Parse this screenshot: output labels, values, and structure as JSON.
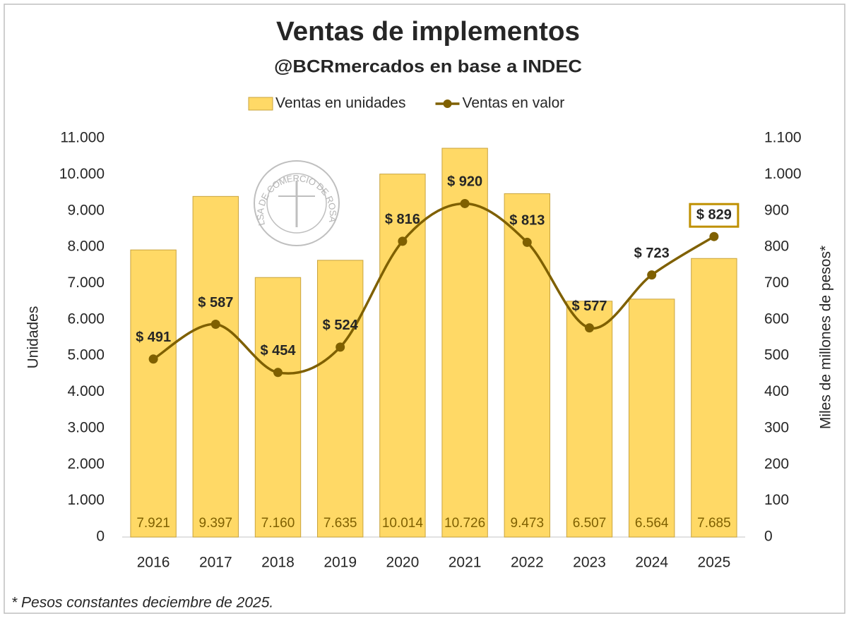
{
  "chart_data": {
    "type": "bar",
    "title": "Ventas de implementos",
    "subtitle": "@BCRmercados en base a INDEC",
    "ylabel": "Unidades",
    "y2label": "Miles de millones de pesos*",
    "footnote": "* Pesos constantes deciembre de 2025.",
    "watermark": "BOLSA DE COMERCIO DE ROSARIO",
    "legend": "top",
    "categories": [
      "2016",
      "2017",
      "2018",
      "2019",
      "2020",
      "2021",
      "2022",
      "2023",
      "2024",
      "2025"
    ],
    "series": [
      {
        "name": "Ventas en unidades",
        "type": "bar",
        "color": "#FFD966",
        "values": [
          7921,
          9397,
          7160,
          7635,
          10014,
          10726,
          9473,
          6507,
          6564,
          7685
        ],
        "value_labels": [
          "7.921",
          "9.397",
          "7.160",
          "7.635",
          "10.014",
          "10.726",
          "9.473",
          "6.507",
          "6.564",
          "7.685"
        ]
      },
      {
        "name": "Ventas en valor",
        "type": "line",
        "axis": "y2",
        "color": "#7F6000",
        "values": [
          491,
          587,
          454,
          524,
          816,
          920,
          813,
          577,
          723,
          829
        ],
        "value_labels": [
          "$ 491",
          "$ 587",
          "$ 454",
          "$ 524",
          "$ 816",
          "$ 920",
          "$ 813",
          "$ 577",
          "$ 723",
          "$ 829"
        ]
      }
    ],
    "ylim": [
      0,
      11000
    ],
    "yticks": [
      0,
      {
        "value": 1000,
        "label": "1.000"
      },
      {
        "value": 2000,
        "label": "2.000"
      },
      {
        "value": 3000,
        "label": "3.000"
      },
      {
        "value": 4000,
        "label": "4.000"
      },
      {
        "value": 5000,
        "label": "5.000"
      },
      {
        "value": 6000,
        "label": "6.000"
      },
      {
        "value": 7000,
        "label": "7.000"
      },
      {
        "value": 8000,
        "label": "8.000"
      },
      {
        "value": 9000,
        "label": "9.000"
      },
      {
        "value": 10000,
        "label": "10.000"
      },
      {
        "value": 11000,
        "label": "11.000"
      }
    ],
    "y2lim": [
      0,
      1100
    ],
    "y2ticks": [
      0,
      100,
      200,
      300,
      400,
      500,
      600,
      700,
      800,
      900,
      {
        "value": 1000,
        "label": "1.000"
      },
      {
        "value": 1100,
        "label": "1.100"
      }
    ],
    "grid": false
  }
}
